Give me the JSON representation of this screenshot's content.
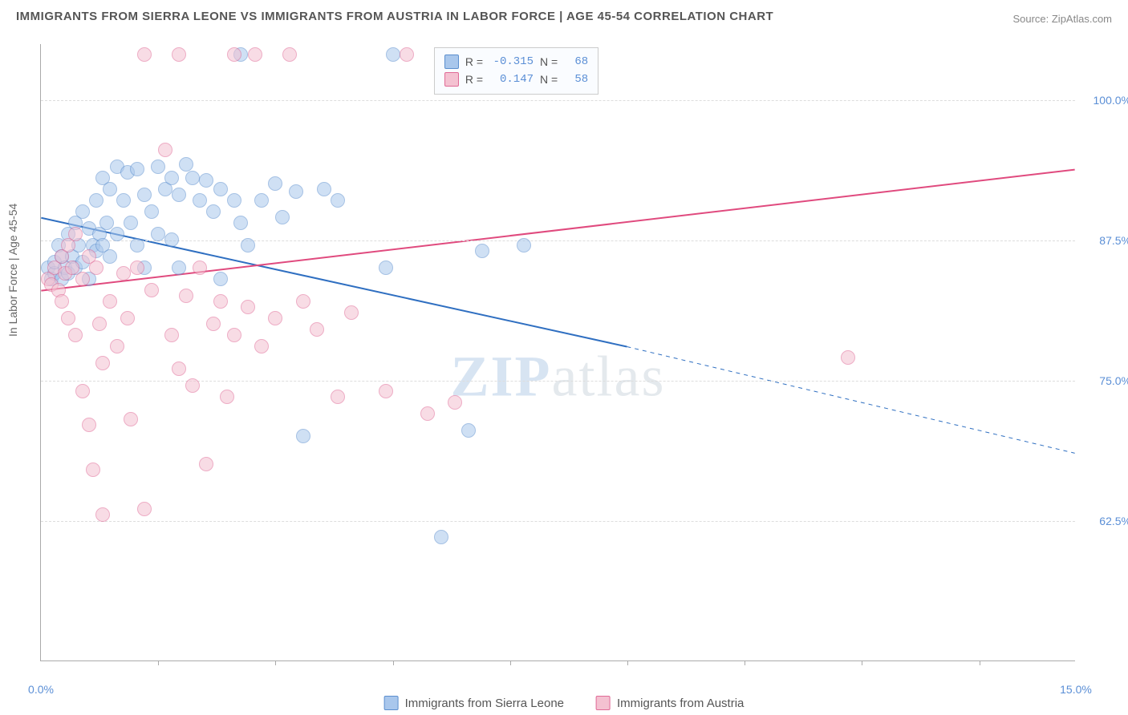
{
  "title": "IMMIGRANTS FROM SIERRA LEONE VS IMMIGRANTS FROM AUSTRIA IN LABOR FORCE | AGE 45-54 CORRELATION CHART",
  "source": "Source: ZipAtlas.com",
  "ylabel": "In Labor Force | Age 45-54",
  "watermark": {
    "bold": "ZIP",
    "thin": "atlas"
  },
  "chart": {
    "type": "scatter",
    "xlim": [
      0,
      15
    ],
    "ylim": [
      50,
      105
    ],
    "xticks": [
      0,
      15
    ],
    "xtick_labels": [
      "0.0%",
      "15.0%"
    ],
    "xminor": [
      1.7,
      3.4,
      5.1,
      6.8,
      8.5,
      10.2,
      11.9,
      13.6
    ],
    "yticks": [
      62.5,
      75.0,
      87.5,
      100.0
    ],
    "ytick_labels": [
      "62.5%",
      "75.0%",
      "87.5%",
      "100.0%"
    ],
    "background": "#ffffff",
    "grid_color": "#dddddd",
    "marker_radius": 9,
    "marker_opacity": 0.55,
    "series": [
      {
        "name": "Immigrants from Sierra Leone",
        "color_fill": "#a9c7ec",
        "color_stroke": "#5c8fce",
        "r": -0.315,
        "n": 68,
        "trend": {
          "x1": 0,
          "y1": 89.5,
          "x2_solid": 8.5,
          "y2_solid": 78.0,
          "x2": 15,
          "y2": 68.5,
          "color": "#2f6fc1",
          "width": 2
        },
        "points": [
          [
            0.1,
            85.0
          ],
          [
            0.15,
            84.0
          ],
          [
            0.2,
            84.5
          ],
          [
            0.2,
            85.5
          ],
          [
            0.25,
            87.0
          ],
          [
            0.3,
            86.0
          ],
          [
            0.3,
            84.0
          ],
          [
            0.35,
            85.0
          ],
          [
            0.4,
            88.0
          ],
          [
            0.4,
            84.5
          ],
          [
            0.45,
            86.0
          ],
          [
            0.5,
            89.0
          ],
          [
            0.5,
            85.0
          ],
          [
            0.55,
            87.0
          ],
          [
            0.6,
            90.0
          ],
          [
            0.6,
            85.5
          ],
          [
            0.7,
            88.5
          ],
          [
            0.7,
            84.0
          ],
          [
            0.75,
            87.0
          ],
          [
            0.8,
            91.0
          ],
          [
            0.8,
            86.5
          ],
          [
            0.85,
            88.0
          ],
          [
            0.9,
            93.0
          ],
          [
            0.9,
            87.0
          ],
          [
            0.95,
            89.0
          ],
          [
            1.0,
            92.0
          ],
          [
            1.0,
            86.0
          ],
          [
            1.1,
            94.0
          ],
          [
            1.1,
            88.0
          ],
          [
            1.2,
            91.0
          ],
          [
            1.25,
            93.5
          ],
          [
            1.3,
            89.0
          ],
          [
            1.4,
            93.8
          ],
          [
            1.4,
            87.0
          ],
          [
            1.5,
            91.5
          ],
          [
            1.5,
            85.0
          ],
          [
            1.6,
            90.0
          ],
          [
            1.7,
            94.0
          ],
          [
            1.7,
            88.0
          ],
          [
            1.8,
            92.0
          ],
          [
            1.9,
            93.0
          ],
          [
            1.9,
            87.5
          ],
          [
            2.0,
            91.5
          ],
          [
            2.0,
            85.0
          ],
          [
            2.1,
            94.2
          ],
          [
            2.2,
            93.0
          ],
          [
            2.3,
            91.0
          ],
          [
            2.4,
            92.8
          ],
          [
            2.5,
            90.0
          ],
          [
            2.6,
            92.0
          ],
          [
            2.6,
            84.0
          ],
          [
            2.8,
            91.0
          ],
          [
            2.9,
            89.0
          ],
          [
            2.9,
            104.0
          ],
          [
            3.0,
            87.0
          ],
          [
            3.2,
            91.0
          ],
          [
            3.4,
            92.5
          ],
          [
            3.5,
            89.5
          ],
          [
            3.7,
            91.8
          ],
          [
            3.8,
            70.0
          ],
          [
            4.1,
            92.0
          ],
          [
            4.3,
            91.0
          ],
          [
            5.0,
            85.0
          ],
          [
            5.1,
            104.0
          ],
          [
            6.2,
            70.5
          ],
          [
            6.4,
            86.5
          ],
          [
            5.8,
            61.0
          ],
          [
            7.0,
            87.0
          ]
        ]
      },
      {
        "name": "Immigrants from Austria",
        "color_fill": "#f4c1d1",
        "color_stroke": "#e06a96",
        "r": 0.147,
        "n": 58,
        "trend": {
          "x1": 0,
          "y1": 83.0,
          "x2_solid": 15,
          "y2_solid": 93.8,
          "x2": 15,
          "y2": 93.8,
          "color": "#e04a7e",
          "width": 2
        },
        "points": [
          [
            0.1,
            84.0
          ],
          [
            0.15,
            83.5
          ],
          [
            0.2,
            85.0
          ],
          [
            0.25,
            83.0
          ],
          [
            0.3,
            86.0
          ],
          [
            0.3,
            82.0
          ],
          [
            0.35,
            84.5
          ],
          [
            0.4,
            87.0
          ],
          [
            0.4,
            80.5
          ],
          [
            0.45,
            85.0
          ],
          [
            0.5,
            88.0
          ],
          [
            0.5,
            79.0
          ],
          [
            0.6,
            84.0
          ],
          [
            0.6,
            74.0
          ],
          [
            0.7,
            86.0
          ],
          [
            0.7,
            71.0
          ],
          [
            0.75,
            67.0
          ],
          [
            0.8,
            85.0
          ],
          [
            0.85,
            80.0
          ],
          [
            0.9,
            76.5
          ],
          [
            0.9,
            63.0
          ],
          [
            1.0,
            82.0
          ],
          [
            1.1,
            78.0
          ],
          [
            1.2,
            84.5
          ],
          [
            1.25,
            80.5
          ],
          [
            1.3,
            71.5
          ],
          [
            1.4,
            85.0
          ],
          [
            1.5,
            63.5
          ],
          [
            1.5,
            104.0
          ],
          [
            1.6,
            83.0
          ],
          [
            1.8,
            95.5
          ],
          [
            1.9,
            79.0
          ],
          [
            2.0,
            104.0
          ],
          [
            2.0,
            76.0
          ],
          [
            2.1,
            82.5
          ],
          [
            2.2,
            74.5
          ],
          [
            2.3,
            85.0
          ],
          [
            2.4,
            67.5
          ],
          [
            2.5,
            80.0
          ],
          [
            2.6,
            82.0
          ],
          [
            2.7,
            73.5
          ],
          [
            2.8,
            79.0
          ],
          [
            2.8,
            104.0
          ],
          [
            3.0,
            81.5
          ],
          [
            3.1,
            104.0
          ],
          [
            3.2,
            78.0
          ],
          [
            3.4,
            80.5
          ],
          [
            3.6,
            104.0
          ],
          [
            3.8,
            82.0
          ],
          [
            4.0,
            79.5
          ],
          [
            4.3,
            73.5
          ],
          [
            4.5,
            81.0
          ],
          [
            5.0,
            74.0
          ],
          [
            5.3,
            104.0
          ],
          [
            5.6,
            72.0
          ],
          [
            6.0,
            73.0
          ],
          [
            7.8,
            104.0
          ],
          [
            11.7,
            77.0
          ]
        ]
      }
    ],
    "stats_box": {
      "left_pct": 38,
      "top_pct": 0.5
    }
  }
}
